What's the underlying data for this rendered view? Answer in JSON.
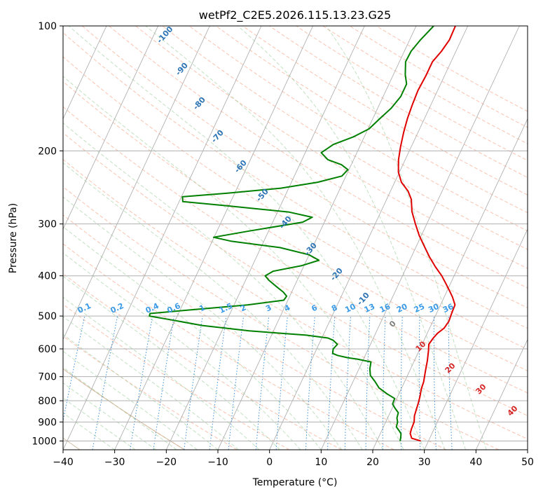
{
  "chart_data": {
    "type": "skew-t",
    "title": "wetPf2_C2E5.2026.115.13.23.G25",
    "xlabel": "Temperature (°C)",
    "ylabel": "Pressure (hPa)",
    "xlim": [
      -40,
      50
    ],
    "ylim": [
      1050,
      100
    ],
    "y_scale": "log",
    "x_ticks": [
      -40,
      -30,
      -20,
      -10,
      0,
      10,
      20,
      30,
      40,
      50
    ],
    "y_ticks": [
      100,
      200,
      300,
      400,
      500,
      600,
      700,
      800,
      900,
      1000
    ],
    "grid": true,
    "dry_adiabat_labels": [
      "-100",
      "-90",
      "-80",
      "-70",
      "-60",
      "-50",
      "-40",
      "-30",
      "-20",
      "-10"
    ],
    "mixing_ratio_labels": [
      "0.1",
      "0.2",
      "0.4",
      "0.6",
      "1",
      "1.5",
      "2",
      "3",
      "4",
      "6",
      "8",
      "10",
      "13",
      "16",
      "20",
      "25",
      "30",
      "36"
    ],
    "isotherm_labels": [
      "0",
      "10",
      "20",
      "30",
      "40"
    ],
    "series": [
      {
        "color": "#e00000",
        "points": [
          [
            28.5,
            1000
          ],
          [
            26.5,
            985
          ],
          [
            25.8,
            960
          ],
          [
            25.6,
            935
          ],
          [
            25.5,
            900
          ],
          [
            25.0,
            870
          ],
          [
            24.8,
            840
          ],
          [
            24.6,
            810
          ],
          [
            24.3,
            780
          ],
          [
            23.9,
            750
          ],
          [
            23.7,
            720
          ],
          [
            23.1,
            680
          ],
          [
            22.5,
            640
          ],
          [
            21.8,
            605
          ],
          [
            21.3,
            585
          ],
          [
            21.6,
            565
          ],
          [
            22.0,
            550
          ],
          [
            22.8,
            535
          ],
          [
            23.1,
            515
          ],
          [
            22.9,
            490
          ],
          [
            22.8,
            470
          ],
          [
            21.6,
            450
          ],
          [
            20.5,
            435
          ],
          [
            19.3,
            420
          ],
          [
            17.6,
            400
          ],
          [
            15.5,
            380
          ],
          [
            13.5,
            360
          ],
          [
            11.6,
            340
          ],
          [
            9.6,
            320
          ],
          [
            7.8,
            300
          ],
          [
            6.0,
            280
          ],
          [
            4.8,
            262
          ],
          [
            3.4,
            250
          ],
          [
            1.3,
            238
          ],
          [
            -0.2,
            225
          ],
          [
            -1.3,
            210
          ],
          [
            -2.1,
            195
          ],
          [
            -2.8,
            180
          ],
          [
            -3.3,
            167
          ],
          [
            -3.6,
            155
          ],
          [
            -3.8,
            143
          ],
          [
            -3.6,
            132
          ],
          [
            -3.6,
            122
          ],
          [
            -2.8,
            115
          ],
          [
            -2.3,
            108
          ],
          [
            -2.4,
            100
          ]
        ]
      },
      {
        "color": "#008000",
        "points": [
          [
            24.5,
            1000
          ],
          [
            24.3,
            980
          ],
          [
            24.0,
            960
          ],
          [
            23.4,
            945
          ],
          [
            22.5,
            925
          ],
          [
            22.3,
            900
          ],
          [
            21.8,
            880
          ],
          [
            21.6,
            855
          ],
          [
            20.6,
            835
          ],
          [
            19.7,
            815
          ],
          [
            19.6,
            790
          ],
          [
            17.7,
            770
          ],
          [
            15.6,
            745
          ],
          [
            14.3,
            720
          ],
          [
            12.8,
            695
          ],
          [
            12.1,
            670
          ],
          [
            11.7,
            645
          ],
          [
            8.8,
            635
          ],
          [
            6.8,
            630
          ],
          [
            4.6,
            622
          ],
          [
            3.5,
            615
          ],
          [
            3.2,
            600
          ],
          [
            3.6,
            585
          ],
          [
            2.4,
            572
          ],
          [
            1.2,
            565
          ],
          [
            -3.3,
            556
          ],
          [
            -14.7,
            543
          ],
          [
            -24.3,
            527
          ],
          [
            -30.3,
            512
          ],
          [
            -35.4,
            500
          ],
          [
            -35.5,
            493
          ],
          [
            -27.1,
            482
          ],
          [
            -17.4,
            470
          ],
          [
            -10.8,
            458
          ],
          [
            -10.6,
            448
          ],
          [
            -11.6,
            438
          ],
          [
            -13.4,
            425
          ],
          [
            -15.5,
            410
          ],
          [
            -16.6,
            400
          ],
          [
            -15.5,
            390
          ],
          [
            -10.4,
            378
          ],
          [
            -7.6,
            367
          ],
          [
            -10.0,
            356
          ],
          [
            -16.3,
            342
          ],
          [
            -26.4,
            330
          ],
          [
            -30.1,
            323
          ],
          [
            -23.8,
            312
          ],
          [
            -14.2,
            297
          ],
          [
            -12.8,
            289
          ],
          [
            -17.7,
            281
          ],
          [
            -30.7,
            271
          ],
          [
            -39.3,
            265
          ],
          [
            -39.8,
            258
          ],
          [
            -31.4,
            253
          ],
          [
            -21.5,
            246
          ],
          [
            -14.9,
            238
          ],
          [
            -10.8,
            230
          ],
          [
            -10.2,
            222
          ],
          [
            -11.9,
            216
          ],
          [
            -15.0,
            210
          ],
          [
            -16.9,
            202
          ],
          [
            -15.3,
            193
          ],
          [
            -12.1,
            185
          ],
          [
            -9.8,
            177
          ],
          [
            -8.6,
            167
          ],
          [
            -7.4,
            158
          ],
          [
            -6.6,
            148
          ],
          [
            -6.6,
            138
          ],
          [
            -7.7,
            131
          ],
          [
            -8.8,
            122
          ],
          [
            -8.7,
            115
          ],
          [
            -7.9,
            108
          ],
          [
            -6.6,
            100
          ]
        ]
      }
    ]
  }
}
